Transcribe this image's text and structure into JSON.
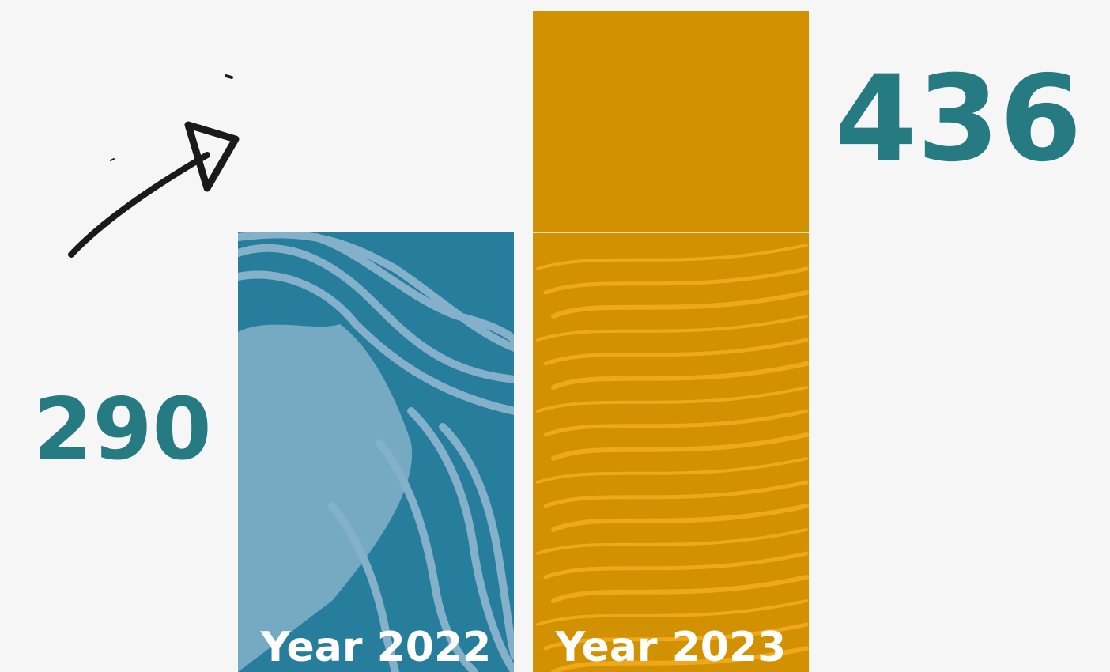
{
  "chart_data": {
    "type": "bar",
    "categories": [
      "Year 2022",
      "Year 2023"
    ],
    "values": [
      290,
      436
    ],
    "value_labels": [
      "290",
      "436"
    ],
    "ylim": [
      0,
      436
    ],
    "grid": false,
    "colors": {
      "background": "#f6f6f6",
      "bar_2022": "#267e9c",
      "bar_2022_texture": "#8fb7ce",
      "bar_2023": "#d29100",
      "bar_2023_texture": "#f2ab1c",
      "value_text": "#267b82",
      "category_text": "#ffffff",
      "arrow": "#1a1a1a"
    },
    "annotation_icon": "hand-drawn-up-right-arrow-icon"
  }
}
